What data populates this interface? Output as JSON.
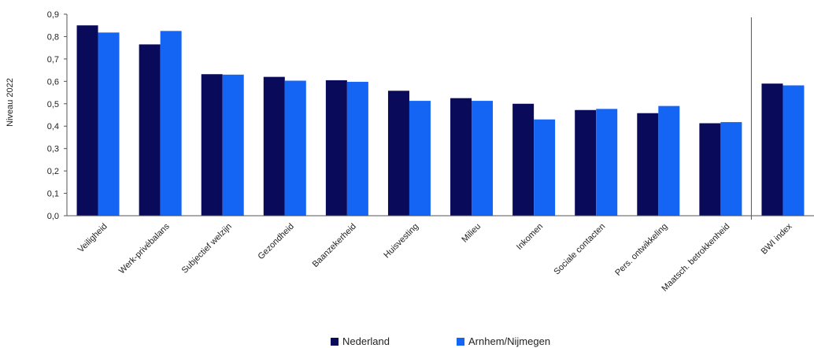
{
  "chart_data": {
    "type": "bar",
    "ylabel": "Niveau 2022",
    "xlabel": "",
    "ylim": [
      0,
      0.9
    ],
    "yticks": [
      "0,0",
      "0,1",
      "0,2",
      "0,3",
      "0,4",
      "0,5",
      "0,6",
      "0,7",
      "0,8",
      "0,9"
    ],
    "categories": [
      "Veiligheid",
      "Werk-privébalans",
      "Subjectief welzijn",
      "Gezondheid",
      "Baanzekerheid",
      "Huisvesting",
      "Milieu",
      "Inkomen",
      "Sociale contacten",
      "Pers. ontwikkeling",
      "Maatsch. betrokkenheid",
      "BWI index"
    ],
    "series": [
      {
        "name": "Nederland",
        "color": "#0a0a5a",
        "values": [
          0.85,
          0.765,
          0.632,
          0.62,
          0.605,
          0.558,
          0.525,
          0.5,
          0.472,
          0.458,
          0.413,
          0.59
        ]
      },
      {
        "name": "Arnhem/Nijmegen",
        "color": "#1565f5",
        "values": [
          0.818,
          0.825,
          0.63,
          0.603,
          0.598,
          0.513,
          0.513,
          0.43,
          0.477,
          0.49,
          0.418,
          0.582
        ]
      }
    ],
    "separator_before": "BWI index",
    "grid": false,
    "legend_position": "bottom"
  }
}
